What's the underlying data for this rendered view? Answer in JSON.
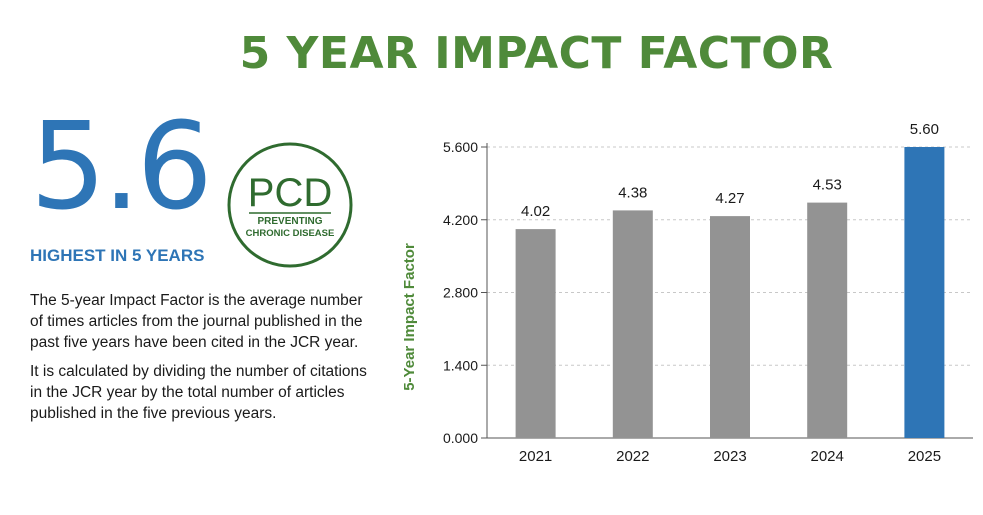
{
  "title": "5 YEAR IMPACT FACTOR",
  "highlight": {
    "value": "5.6",
    "caption": "HIGHEST IN 5 YEARS"
  },
  "logo": {
    "acronym": "PCD",
    "line1": "PREVENTING",
    "line2": "CHRONIC DISEASE"
  },
  "description": [
    "The 5-year Impact Factor is the average number of times articles from the journal published in the past five years have been cited in the JCR year.",
    "It is calculated by dividing the number of citations in the JCR year by the total number of articles published in the five previous years."
  ],
  "colors": {
    "title": "#4f8a3a",
    "accent": "#2e75b6",
    "bar": "#939393",
    "bar_highlight": "#2e75b6",
    "logo": "#2f6b2f"
  },
  "chart_data": {
    "type": "bar",
    "categories": [
      "2021",
      "2022",
      "2023",
      "2024",
      "2025"
    ],
    "values": [
      4.02,
      4.38,
      4.27,
      4.53,
      5.6
    ],
    "data_labels": [
      "4.02",
      "4.38",
      "4.27",
      "4.53",
      "5.60"
    ],
    "highlight_category": "2025",
    "ylabel": "5-Year Impact Factor",
    "ylim": [
      0,
      5.6
    ],
    "yticks": [
      0,
      1.4,
      2.8,
      4.2,
      5.6
    ],
    "ytick_labels": [
      "0.000",
      "1.400",
      "2.800",
      "4.200",
      "5.600"
    ],
    "grid": true
  }
}
